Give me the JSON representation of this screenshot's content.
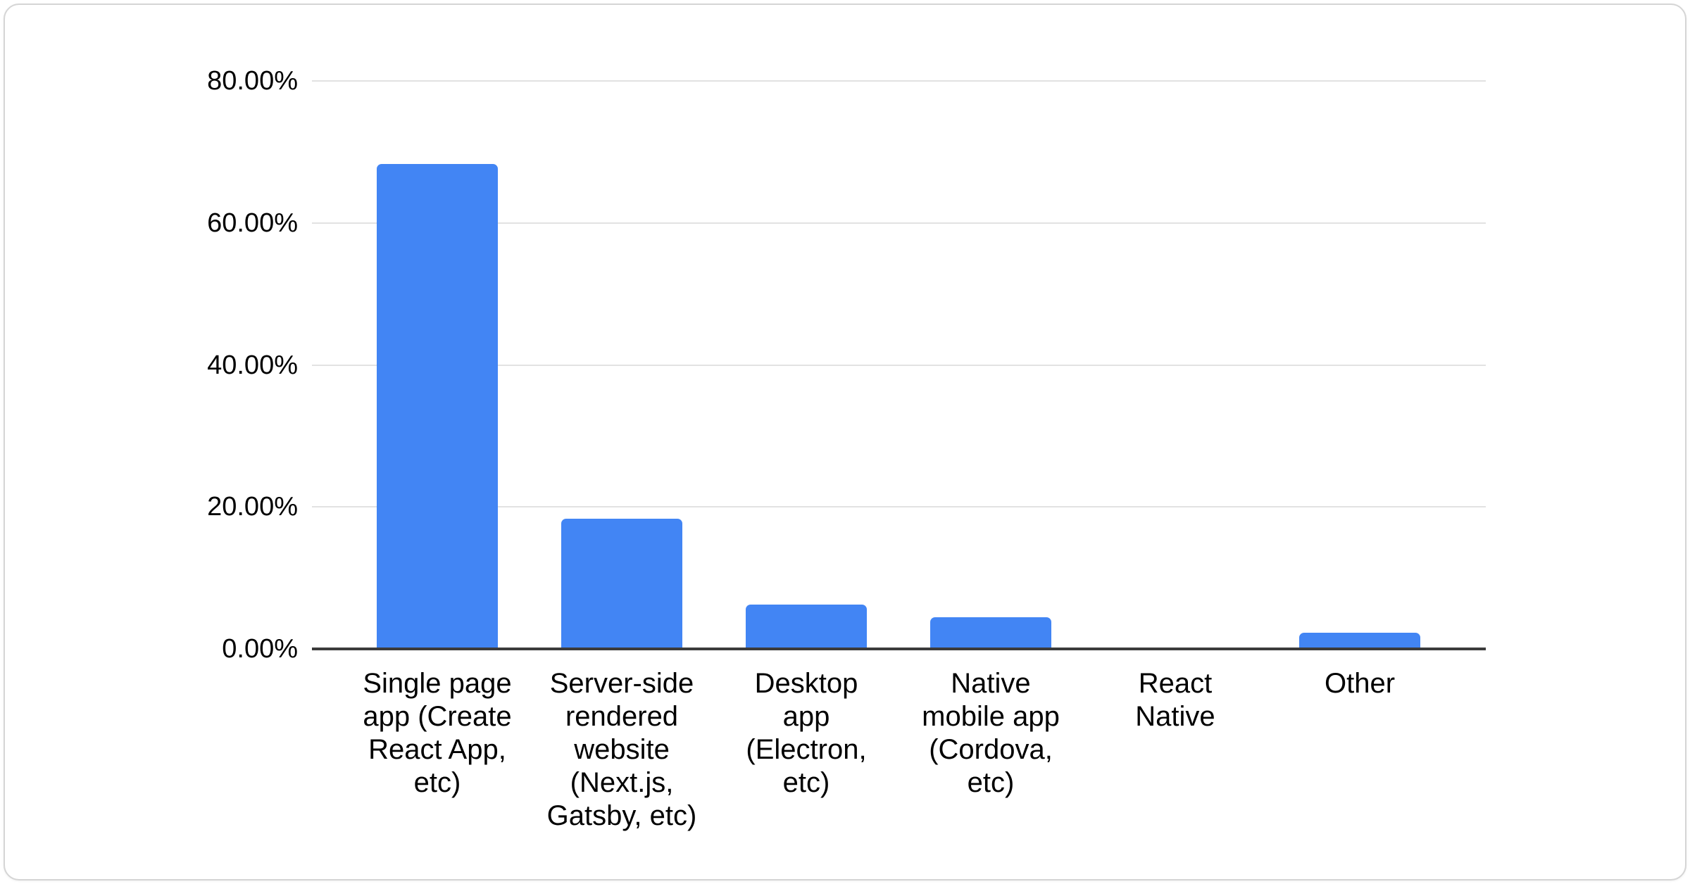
{
  "card": {
    "background": "#ffffff",
    "border_color": "#d5d5d5"
  },
  "chart_data": {
    "type": "bar",
    "title": "",
    "xlabel": "",
    "ylabel": "",
    "categories": [
      "Single page app (Create React App, etc)",
      "Server-side rendered website (Next.js, Gatsby, etc)",
      "Desktop app (Electron, etc)",
      "Native mobile app (Cordova, etc)",
      "React Native",
      "Other"
    ],
    "category_lines": [
      [
        "Single page",
        "app (Create",
        "React App,",
        "etc)"
      ],
      [
        "Server-side",
        "rendered",
        "website",
        "(Next.js,",
        "Gatsby, etc)"
      ],
      [
        "Desktop",
        "app",
        "(Electron,",
        "etc)"
      ],
      [
        "Native",
        "mobile app",
        "(Cordova,",
        "etc)"
      ],
      [
        "React",
        "Native"
      ],
      [
        "Other"
      ]
    ],
    "values": [
      68.3,
      18.3,
      6.2,
      4.5,
      0,
      2.3
    ],
    "value_unit": "%",
    "yticks": [
      {
        "label": "80.00%",
        "value": 80
      },
      {
        "label": "60.00%",
        "value": 60
      },
      {
        "label": "40.00%",
        "value": 40
      },
      {
        "label": "20.00%",
        "value": 20
      },
      {
        "label": "0.00%",
        "value": 0
      }
    ],
    "ylim": [
      0,
      80
    ],
    "grid": true,
    "legend_position": "none",
    "colors": {
      "bar": "#4285f4",
      "gridline": "#e2e2e2",
      "axis_line": "#3b3b3b",
      "tick_text": "#000000",
      "category_text": "#000000"
    }
  }
}
